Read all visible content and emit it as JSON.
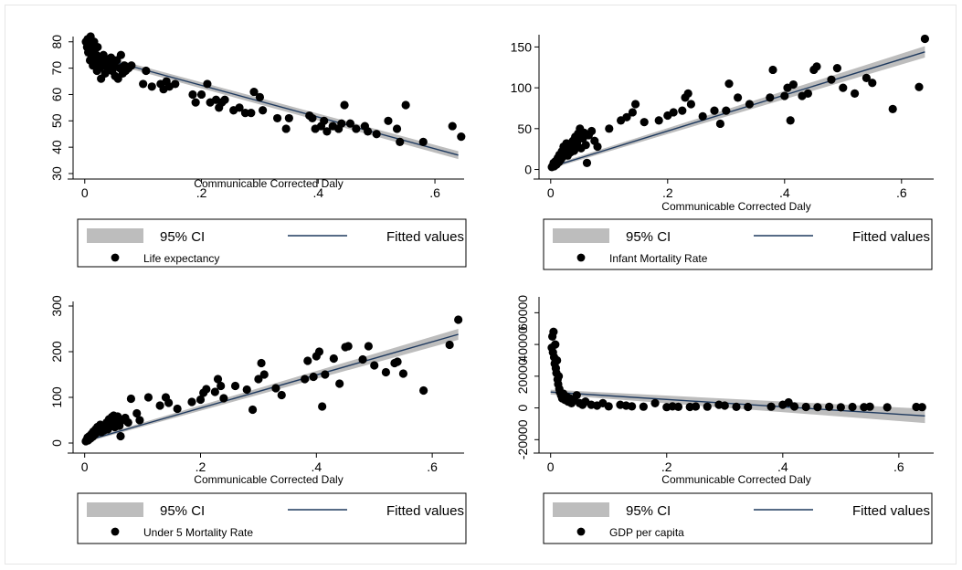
{
  "chart_data": [
    {
      "type": "scatter",
      "xlabel": "Communicable Corrected Daly",
      "ylabel": "",
      "xlim": [
        -0.02,
        0.65
      ],
      "ylim": [
        30,
        82
      ],
      "xticks": [
        "0",
        ".2",
        ".4",
        ".6"
      ],
      "yticks": [
        "30",
        "40",
        "50",
        "60",
        "70",
        "80"
      ],
      "ytick_values": [
        30,
        40,
        50,
        60,
        70,
        80
      ],
      "ytick_rotated": true,
      "legend": {
        "ci": "95% CI",
        "fit": "Fitted values",
        "series": "Life expectancy"
      },
      "fit": {
        "x": [
          0,
          0.64
        ],
        "y": [
          75.5,
          37
        ],
        "ci_halfwidth": [
          1.0,
          1.5
        ]
      },
      "points": [
        [
          0.002,
          80
        ],
        [
          0.004,
          78
        ],
        [
          0.005,
          81
        ],
        [
          0.006,
          76
        ],
        [
          0.008,
          79
        ],
        [
          0.009,
          73
        ],
        [
          0.01,
          82
        ],
        [
          0.011,
          77
        ],
        [
          0.012,
          74
        ],
        [
          0.013,
          79
        ],
        [
          0.014,
          71
        ],
        [
          0.015,
          76
        ],
        [
          0.016,
          80
        ],
        [
          0.018,
          72
        ],
        [
          0.02,
          75
        ],
        [
          0.021,
          69
        ],
        [
          0.022,
          78
        ],
        [
          0.024,
          73
        ],
        [
          0.025,
          70
        ],
        [
          0.027,
          74
        ],
        [
          0.028,
          66
        ],
        [
          0.03,
          72
        ],
        [
          0.032,
          75
        ],
        [
          0.034,
          71
        ],
        [
          0.035,
          68
        ],
        [
          0.037,
          73
        ],
        [
          0.04,
          70
        ],
        [
          0.042,
          72
        ],
        [
          0.045,
          74
        ],
        [
          0.047,
          69
        ],
        [
          0.05,
          71
        ],
        [
          0.052,
          67
        ],
        [
          0.055,
          73
        ],
        [
          0.057,
          66
        ],
        [
          0.06,
          70
        ],
        [
          0.062,
          75
        ],
        [
          0.065,
          68
        ],
        [
          0.068,
          71
        ],
        [
          0.07,
          69
        ],
        [
          0.075,
          70
        ],
        [
          0.08,
          71
        ],
        [
          0.1,
          64
        ],
        [
          0.105,
          69
        ],
        [
          0.115,
          63
        ],
        [
          0.13,
          64
        ],
        [
          0.135,
          62
        ],
        [
          0.14,
          65
        ],
        [
          0.145,
          63
        ],
        [
          0.155,
          64
        ],
        [
          0.185,
          60
        ],
        [
          0.19,
          57
        ],
        [
          0.2,
          60
        ],
        [
          0.21,
          64
        ],
        [
          0.215,
          57
        ],
        [
          0.225,
          58
        ],
        [
          0.23,
          55
        ],
        [
          0.235,
          57
        ],
        [
          0.24,
          58
        ],
        [
          0.255,
          54
        ],
        [
          0.265,
          55
        ],
        [
          0.275,
          53
        ],
        [
          0.285,
          53
        ],
        [
          0.29,
          61
        ],
        [
          0.3,
          59
        ],
        [
          0.305,
          54
        ],
        [
          0.33,
          51
        ],
        [
          0.345,
          47
        ],
        [
          0.35,
          51
        ],
        [
          0.385,
          52
        ],
        [
          0.39,
          51
        ],
        [
          0.395,
          47
        ],
        [
          0.405,
          48
        ],
        [
          0.41,
          50
        ],
        [
          0.415,
          46
        ],
        [
          0.425,
          48
        ],
        [
          0.435,
          47
        ],
        [
          0.44,
          49
        ],
        [
          0.445,
          56
        ],
        [
          0.455,
          49
        ],
        [
          0.465,
          47
        ],
        [
          0.48,
          48
        ],
        [
          0.485,
          46
        ],
        [
          0.5,
          45
        ],
        [
          0.52,
          50
        ],
        [
          0.535,
          47
        ],
        [
          0.54,
          42
        ],
        [
          0.55,
          56
        ],
        [
          0.58,
          42
        ],
        [
          0.63,
          48
        ],
        [
          0.645,
          44
        ]
      ]
    },
    {
      "type": "scatter",
      "xlabel": "Communicable Corrected Daly",
      "ylabel": "",
      "xlim": [
        -0.02,
        0.655
      ],
      "ylim": [
        -5,
        165
      ],
      "xticks": [
        "0",
        ".2",
        ".4",
        ".6"
      ],
      "yticks": [
        "0",
        "50",
        "100",
        "150"
      ],
      "ytick_values": [
        0,
        50,
        100,
        150
      ],
      "ytick_rotated": false,
      "legend": {
        "ci": "95% CI",
        "fit": "Fitted values",
        "series": "Infant Mortality Rate"
      },
      "fit": {
        "x": [
          0,
          0.64
        ],
        "y": [
          3,
          144
        ],
        "ci_halfwidth": [
          2.0,
          7.0
        ]
      },
      "points": [
        [
          0.002,
          3
        ],
        [
          0.004,
          5
        ],
        [
          0.005,
          8
        ],
        [
          0.006,
          4
        ],
        [
          0.008,
          10
        ],
        [
          0.01,
          6
        ],
        [
          0.012,
          14
        ],
        [
          0.014,
          9
        ],
        [
          0.015,
          18
        ],
        [
          0.017,
          12
        ],
        [
          0.019,
          22
        ],
        [
          0.02,
          15
        ],
        [
          0.022,
          28
        ],
        [
          0.024,
          19
        ],
        [
          0.025,
          25
        ],
        [
          0.027,
          32
        ],
        [
          0.029,
          17
        ],
        [
          0.03,
          24
        ],
        [
          0.032,
          30
        ],
        [
          0.034,
          21
        ],
        [
          0.036,
          27
        ],
        [
          0.038,
          35
        ],
        [
          0.04,
          23
        ],
        [
          0.042,
          40
        ],
        [
          0.044,
          28
        ],
        [
          0.045,
          33
        ],
        [
          0.047,
          44
        ],
        [
          0.05,
          50
        ],
        [
          0.052,
          26
        ],
        [
          0.055,
          38
        ],
        [
          0.057,
          45
        ],
        [
          0.06,
          30
        ],
        [
          0.062,
          8
        ],
        [
          0.065,
          42
        ],
        [
          0.07,
          47
        ],
        [
          0.075,
          35
        ],
        [
          0.08,
          28
        ],
        [
          0.1,
          50
        ],
        [
          0.12,
          60
        ],
        [
          0.13,
          64
        ],
        [
          0.14,
          70
        ],
        [
          0.145,
          80
        ],
        [
          0.16,
          58
        ],
        [
          0.185,
          60
        ],
        [
          0.2,
          66
        ],
        [
          0.21,
          70
        ],
        [
          0.225,
          72
        ],
        [
          0.23,
          88
        ],
        [
          0.235,
          93
        ],
        [
          0.24,
          80
        ],
        [
          0.26,
          65
        ],
        [
          0.28,
          72
        ],
        [
          0.29,
          56
        ],
        [
          0.3,
          72
        ],
        [
          0.305,
          105
        ],
        [
          0.32,
          88
        ],
        [
          0.34,
          80
        ],
        [
          0.375,
          88
        ],
        [
          0.38,
          122
        ],
        [
          0.4,
          90
        ],
        [
          0.405,
          100
        ],
        [
          0.41,
          60
        ],
        [
          0.415,
          104
        ],
        [
          0.43,
          90
        ],
        [
          0.44,
          93
        ],
        [
          0.45,
          122
        ],
        [
          0.455,
          126
        ],
        [
          0.48,
          110
        ],
        [
          0.49,
          124
        ],
        [
          0.5,
          100
        ],
        [
          0.52,
          93
        ],
        [
          0.54,
          112
        ],
        [
          0.55,
          106
        ],
        [
          0.585,
          74
        ],
        [
          0.63,
          101
        ],
        [
          0.64,
          160
        ]
      ]
    },
    {
      "type": "scatter",
      "xlabel": "Communicable Corrected Daly",
      "ylabel": "",
      "xlim": [
        -0.02,
        0.655
      ],
      "ylim": [
        -10,
        310
      ],
      "xticks": [
        "0",
        ".2",
        ".4",
        ".6"
      ],
      "yticks": [
        "0",
        "100",
        "200",
        "300"
      ],
      "ytick_values": [
        0,
        100,
        200,
        300
      ],
      "ytick_rotated": true,
      "legend": {
        "ci": "95% CI",
        "fit": "Fitted values",
        "series": "Under 5 Mortality Rate"
      },
      "fit": {
        "x": [
          0,
          0.645
        ],
        "y": [
          4,
          238
        ],
        "ci_halfwidth": [
          3,
          12
        ]
      },
      "points": [
        [
          0.002,
          4
        ],
        [
          0.004,
          8
        ],
        [
          0.005,
          12
        ],
        [
          0.006,
          6
        ],
        [
          0.008,
          15
        ],
        [
          0.01,
          10
        ],
        [
          0.012,
          20
        ],
        [
          0.014,
          14
        ],
        [
          0.015,
          25
        ],
        [
          0.017,
          18
        ],
        [
          0.019,
          30
        ],
        [
          0.02,
          22
        ],
        [
          0.022,
          35
        ],
        [
          0.024,
          27
        ],
        [
          0.025,
          32
        ],
        [
          0.027,
          40
        ],
        [
          0.029,
          24
        ],
        [
          0.03,
          31
        ],
        [
          0.032,
          38
        ],
        [
          0.034,
          28
        ],
        [
          0.036,
          34
        ],
        [
          0.038,
          45
        ],
        [
          0.04,
          30
        ],
        [
          0.042,
          52
        ],
        [
          0.044,
          36
        ],
        [
          0.045,
          42
        ],
        [
          0.047,
          57
        ],
        [
          0.05,
          60
        ],
        [
          0.052,
          35
        ],
        [
          0.055,
          48
        ],
        [
          0.057,
          58
        ],
        [
          0.06,
          38
        ],
        [
          0.062,
          15
        ],
        [
          0.065,
          50
        ],
        [
          0.07,
          55
        ],
        [
          0.075,
          45
        ],
        [
          0.08,
          97
        ],
        [
          0.09,
          65
        ],
        [
          0.095,
          50
        ],
        [
          0.11,
          100
        ],
        [
          0.13,
          82
        ],
        [
          0.14,
          100
        ],
        [
          0.145,
          88
        ],
        [
          0.16,
          75
        ],
        [
          0.185,
          90
        ],
        [
          0.2,
          95
        ],
        [
          0.205,
          110
        ],
        [
          0.21,
          118
        ],
        [
          0.225,
          112
        ],
        [
          0.23,
          140
        ],
        [
          0.235,
          125
        ],
        [
          0.24,
          98
        ],
        [
          0.26,
          125
        ],
        [
          0.28,
          117
        ],
        [
          0.29,
          73
        ],
        [
          0.3,
          140
        ],
        [
          0.305,
          175
        ],
        [
          0.31,
          150
        ],
        [
          0.33,
          120
        ],
        [
          0.34,
          105
        ],
        [
          0.38,
          140
        ],
        [
          0.385,
          180
        ],
        [
          0.395,
          145
        ],
        [
          0.4,
          190
        ],
        [
          0.405,
          200
        ],
        [
          0.41,
          80
        ],
        [
          0.415,
          150
        ],
        [
          0.43,
          185
        ],
        [
          0.44,
          130
        ],
        [
          0.45,
          210
        ],
        [
          0.455,
          212
        ],
        [
          0.48,
          183
        ],
        [
          0.49,
          212
        ],
        [
          0.5,
          170
        ],
        [
          0.52,
          155
        ],
        [
          0.535,
          175
        ],
        [
          0.54,
          178
        ],
        [
          0.55,
          152
        ],
        [
          0.585,
          115
        ],
        [
          0.63,
          215
        ],
        [
          0.645,
          270
        ]
      ]
    },
    {
      "type": "scatter",
      "xlabel": "Communicable Corrected Daly",
      "ylabel": "",
      "xlim": [
        -0.02,
        0.66
      ],
      "ylim": [
        -25000,
        70000
      ],
      "xticks": [
        "0",
        ".2",
        ".4",
        ".6"
      ],
      "yticks": [
        "-20000",
        "0",
        "20000",
        "40000",
        "60000"
      ],
      "ytick_values": [
        -20000,
        0,
        20000,
        40000,
        60000
      ],
      "ytick_rotated": true,
      "legend": {
        "ci": "95% CI",
        "fit": "Fitted values",
        "series": "GDP per capita"
      },
      "fit": {
        "x": [
          0,
          0.645
        ],
        "y": [
          10000,
          -5000
        ],
        "ci_halfwidth": [
          1500,
          4500
        ]
      },
      "points": [
        [
          0.002,
          38000
        ],
        [
          0.003,
          45000
        ],
        [
          0.004,
          35000
        ],
        [
          0.005,
          48000
        ],
        [
          0.006,
          32000
        ],
        [
          0.007,
          28000
        ],
        [
          0.008,
          40000
        ],
        [
          0.009,
          25000
        ],
        [
          0.01,
          22000
        ],
        [
          0.011,
          30000
        ],
        [
          0.012,
          18000
        ],
        [
          0.013,
          15000
        ],
        [
          0.014,
          20000
        ],
        [
          0.015,
          12000
        ],
        [
          0.016,
          10000
        ],
        [
          0.018,
          8000
        ],
        [
          0.02,
          6000
        ],
        [
          0.022,
          9000
        ],
        [
          0.025,
          5000
        ],
        [
          0.028,
          7000
        ],
        [
          0.03,
          4000
        ],
        [
          0.033,
          6000
        ],
        [
          0.036,
          3000
        ],
        [
          0.04,
          5000
        ],
        [
          0.045,
          8000
        ],
        [
          0.05,
          3000
        ],
        [
          0.055,
          2000
        ],
        [
          0.06,
          4000
        ],
        [
          0.07,
          2000
        ],
        [
          0.08,
          1500
        ],
        [
          0.09,
          3000
        ],
        [
          0.1,
          1000
        ],
        [
          0.12,
          2000
        ],
        [
          0.13,
          1500
        ],
        [
          0.14,
          1000
        ],
        [
          0.16,
          800
        ],
        [
          0.18,
          3000
        ],
        [
          0.2,
          500
        ],
        [
          0.21,
          1000
        ],
        [
          0.22,
          700
        ],
        [
          0.24,
          600
        ],
        [
          0.25,
          900
        ],
        [
          0.27,
          800
        ],
        [
          0.29,
          2000
        ],
        [
          0.3,
          1500
        ],
        [
          0.32,
          700
        ],
        [
          0.34,
          600
        ],
        [
          0.38,
          800
        ],
        [
          0.4,
          2000
        ],
        [
          0.41,
          3500
        ],
        [
          0.42,
          900
        ],
        [
          0.44,
          600
        ],
        [
          0.46,
          500
        ],
        [
          0.48,
          700
        ],
        [
          0.5,
          400
        ],
        [
          0.52,
          600
        ],
        [
          0.54,
          500
        ],
        [
          0.55,
          800
        ],
        [
          0.58,
          400
        ],
        [
          0.63,
          600
        ],
        [
          0.64,
          500
        ]
      ]
    }
  ]
}
